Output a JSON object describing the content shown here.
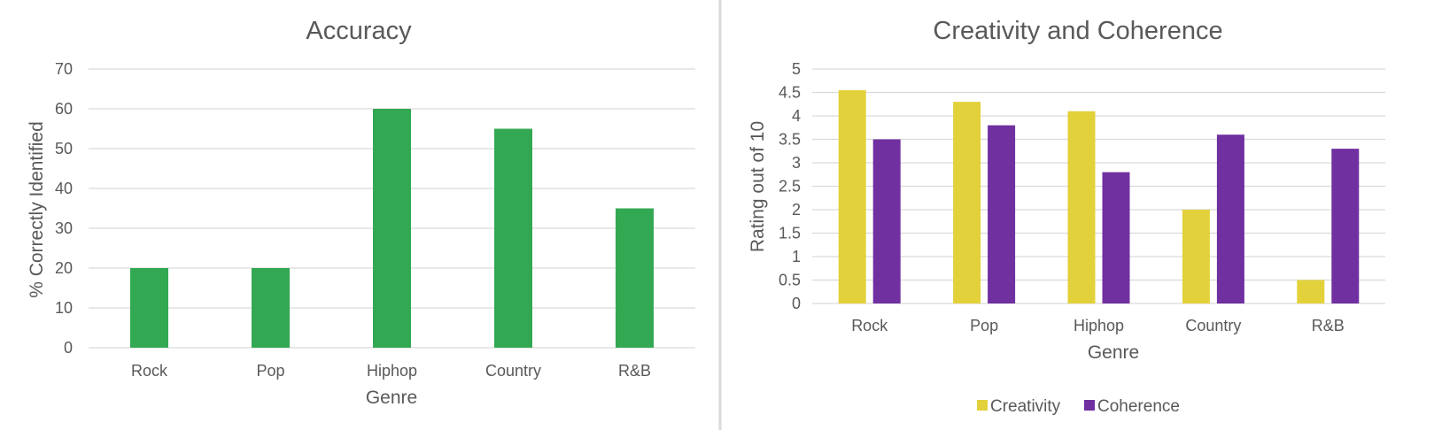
{
  "chart_data": [
    {
      "type": "bar",
      "title": "Accuracy",
      "xlabel": "Genre",
      "ylabel": "% Correctly Identified",
      "categories": [
        "Rock",
        "Pop",
        "Hiphop",
        "Country",
        "R&B"
      ],
      "series": [
        {
          "values": [
            20,
            20,
            60,
            55,
            35
          ],
          "color": "#33a853"
        }
      ],
      "ylim": [
        0,
        70
      ],
      "yticks": [
        "0",
        "10",
        "20",
        "30",
        "40",
        "50",
        "60",
        "70"
      ],
      "grid": true,
      "legend": "none"
    },
    {
      "type": "bar",
      "title": "Creativity and Coherence",
      "xlabel": "Genre",
      "ylabel": "Rating out of 10",
      "categories": [
        "Rock",
        "Pop",
        "Hiphop",
        "Country",
        "R&B"
      ],
      "series": [
        {
          "name": "Creativity",
          "values": [
            4.55,
            4.3,
            4.1,
            2.0,
            0.5
          ],
          "color": "#e2d13a"
        },
        {
          "name": "Coherence",
          "values": [
            3.5,
            3.8,
            2.8,
            3.6,
            3.3
          ],
          "color": "#7030a0"
        }
      ],
      "ylim": [
        0,
        5
      ],
      "yticks": [
        "0",
        "0.5",
        "1",
        "1.5",
        "2",
        "2.5",
        "3",
        "3.5",
        "4",
        "4.5",
        "5"
      ],
      "grid": true,
      "legend": "bottom"
    }
  ]
}
